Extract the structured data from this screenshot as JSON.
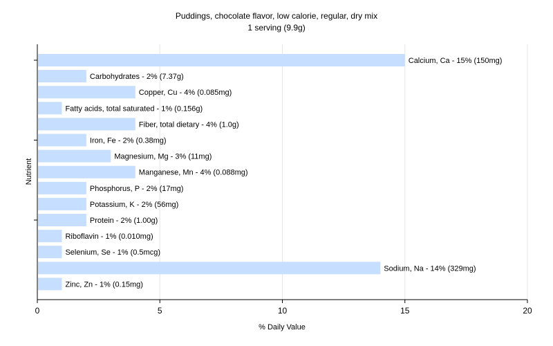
{
  "chart_data": {
    "type": "bar",
    "orientation": "horizontal",
    "title": "Puddings, chocolate flavor, low calorie, regular, dry mix",
    "subtitle": "1 serving (9.9g)",
    "xlabel": "% Daily Value",
    "ylabel": "Nutrient",
    "xlim": [
      0,
      20
    ],
    "xticks": [
      "0",
      "5",
      "10",
      "15",
      "20"
    ],
    "grid": true,
    "bar_color": "#c6deff",
    "categories": [
      "Calcium, Ca",
      "Carbohydrates",
      "Copper, Cu",
      "Fatty acids, total saturated",
      "Fiber, total dietary",
      "Iron, Fe",
      "Magnesium, Mg",
      "Manganese, Mn",
      "Phosphorus, P",
      "Potassium, K",
      "Protein",
      "Riboflavin",
      "Selenium, Se",
      "Sodium, Na",
      "Zinc, Zn"
    ],
    "values": [
      15,
      2,
      4,
      1,
      4,
      2,
      3,
      4,
      2,
      2,
      2,
      1,
      1,
      14,
      1
    ],
    "labels": [
      "Calcium, Ca - 15% (150mg)",
      "Carbohydrates - 2% (7.37g)",
      "Copper, Cu - 4% (0.085mg)",
      "Fatty acids, total saturated - 1% (0.156g)",
      "Fiber, total dietary - 4% (1.0g)",
      "Iron, Fe - 2% (0.38mg)",
      "Magnesium, Mg - 3% (11mg)",
      "Manganese, Mn - 4% (0.088mg)",
      "Phosphorus, P - 2% (17mg)",
      "Potassium, K - 2% (56mg)",
      "Protein - 2% (1.00g)",
      "Riboflavin - 1% (0.010mg)",
      "Selenium, Se - 1% (0.5mcg)",
      "Sodium, Na - 14% (329mg)",
      "Zinc, Zn - 1% (0.15mg)"
    ]
  }
}
